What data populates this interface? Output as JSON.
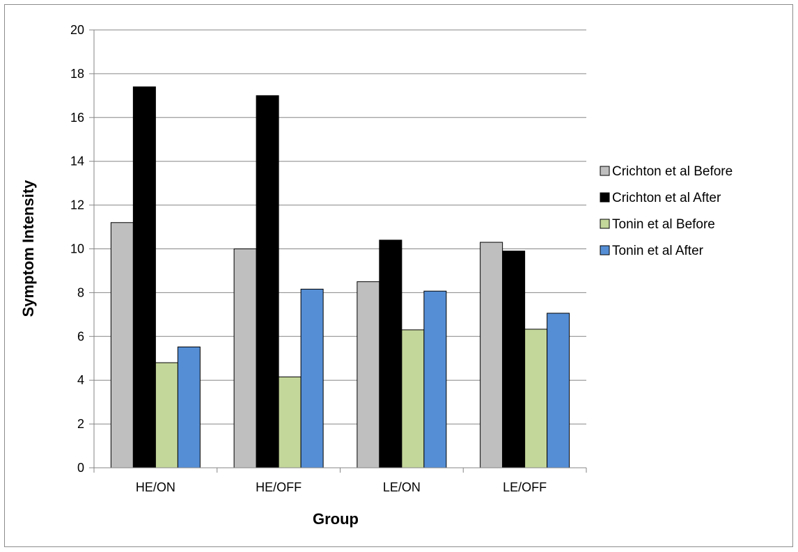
{
  "chart_data": {
    "type": "bar",
    "title": "",
    "xlabel": "Group",
    "ylabel": "Symptom Intensity",
    "categories": [
      "HE/ON",
      "HE/OFF",
      "LE/ON",
      "LE/OFF"
    ],
    "series": [
      {
        "name": "Crichton et al Before",
        "color": "#bfbfbf",
        "values": [
          11.2,
          10.0,
          8.5,
          10.3
        ]
      },
      {
        "name": "Crichton et al After",
        "color": "#000000",
        "values": [
          17.4,
          17.0,
          10.4,
          9.9
        ]
      },
      {
        "name": "Tonin et al Before",
        "color": "#c4d79b",
        "values": [
          4.8,
          4.15,
          6.3,
          6.33
        ]
      },
      {
        "name": "Tonin et al After",
        "color": "#558ed5",
        "values": [
          5.52,
          8.16,
          8.07,
          7.06
        ]
      }
    ],
    "ylim": [
      0,
      20
    ],
    "yticks": [
      0,
      2,
      4,
      6,
      8,
      10,
      12,
      14,
      16,
      18,
      20
    ],
    "grid": true,
    "legend_position": "right"
  }
}
